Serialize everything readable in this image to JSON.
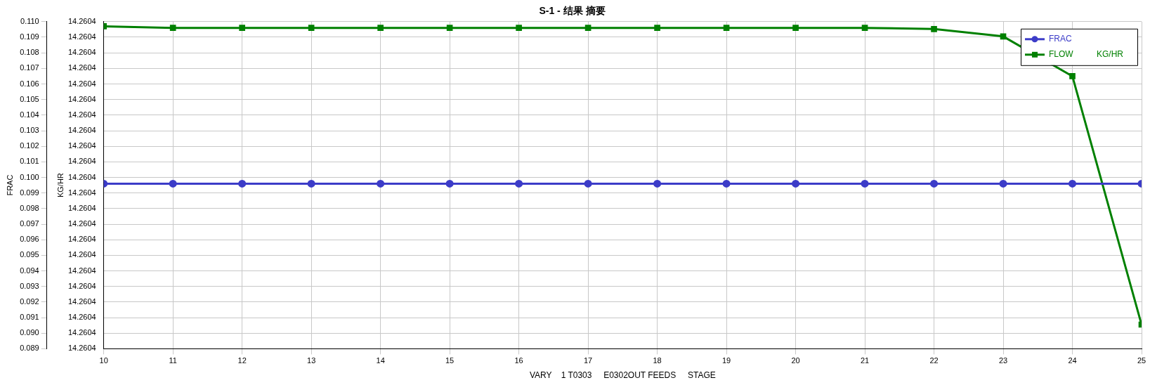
{
  "chart_data": {
    "type": "line",
    "title": "S-1 - 结果 摘要",
    "xlabel": "VARY    1 T0303     E0302OUT FEEDS     STAGE",
    "ylabel": "FRAC",
    "y2label": "KG/HR",
    "x": [
      10,
      11,
      12,
      13,
      14,
      15,
      16,
      17,
      18,
      19,
      20,
      21,
      22,
      23,
      24,
      25
    ],
    "xlim": [
      10,
      25
    ],
    "xticks": [
      10,
      11,
      12,
      13,
      14,
      15,
      16,
      17,
      18,
      19,
      20,
      21,
      22,
      23,
      24,
      25
    ],
    "ylim": [
      0.089,
      0.11
    ],
    "yticks": [
      {
        "value": 0.089,
        "label": "0.089"
      },
      {
        "value": 0.09,
        "label": "0.090"
      },
      {
        "value": 0.091,
        "label": "0.091"
      },
      {
        "value": 0.092,
        "label": "0.092"
      },
      {
        "value": 0.093,
        "label": "0.093"
      },
      {
        "value": 0.094,
        "label": "0.094"
      },
      {
        "value": 0.095,
        "label": "0.095"
      },
      {
        "value": 0.096,
        "label": "0.096"
      },
      {
        "value": 0.097,
        "label": "0.097"
      },
      {
        "value": 0.098,
        "label": "0.098"
      },
      {
        "value": 0.099,
        "label": "0.099"
      },
      {
        "value": 0.1,
        "label": "0.100"
      },
      {
        "value": 0.101,
        "label": "0.101"
      },
      {
        "value": 0.102,
        "label": "0.102"
      },
      {
        "value": 0.103,
        "label": "0.103"
      },
      {
        "value": 0.104,
        "label": "0.104"
      },
      {
        "value": 0.105,
        "label": "0.105"
      },
      {
        "value": 0.106,
        "label": "0.106"
      },
      {
        "value": 0.107,
        "label": "0.107"
      },
      {
        "value": 0.108,
        "label": "0.108"
      },
      {
        "value": 0.109,
        "label": "0.109"
      },
      {
        "value": 0.11,
        "label": "0.110"
      }
    ],
    "y2lim": [
      14.26036,
      14.260444
    ],
    "y2ticks": [
      {
        "value": 14.26036,
        "label": "14.2604"
      },
      {
        "value": 14.260364,
        "label": "14.2604"
      },
      {
        "value": 14.260368,
        "label": "14.2604"
      },
      {
        "value": 14.260372,
        "label": "14.2604"
      },
      {
        "value": 14.260376,
        "label": "14.2604"
      },
      {
        "value": 14.26038,
        "label": "14.2604"
      },
      {
        "value": 14.260384,
        "label": "14.2604"
      },
      {
        "value": 14.260388,
        "label": "14.2604"
      },
      {
        "value": 14.260392,
        "label": "14.2604"
      },
      {
        "value": 14.260396,
        "label": "14.2604"
      },
      {
        "value": 14.2604,
        "label": "14.2604"
      },
      {
        "value": 14.260404,
        "label": "14.2604"
      },
      {
        "value": 14.260408,
        "label": "14.2604"
      },
      {
        "value": 14.260412,
        "label": "14.2604"
      },
      {
        "value": 14.260416,
        "label": "14.2604"
      },
      {
        "value": 14.26042,
        "label": "14.2604"
      },
      {
        "value": 14.260424,
        "label": "14.2604"
      },
      {
        "value": 14.260428,
        "label": "14.2604"
      },
      {
        "value": 14.260432,
        "label": "14.2604"
      },
      {
        "value": 14.260436,
        "label": "14.2604"
      },
      {
        "value": 14.26044,
        "label": "14.2604"
      },
      {
        "value": 14.260444,
        "label": "14.2604"
      }
    ],
    "grid": true,
    "legend": "top right",
    "line_style": "solid",
    "series": [
      {
        "name": "FRAC",
        "color": "#3c3cc8",
        "marker": "circle",
        "values": [
          0.0996,
          0.0996,
          0.0996,
          0.0996,
          0.0996,
          0.0996,
          0.0996,
          0.0996,
          0.0996,
          0.0996,
          0.0996,
          0.0996,
          0.0996,
          0.0996,
          0.0996,
          0.0996
        ]
      },
      {
        "name": "FLOW          KG/HR",
        "color": "#008000",
        "marker": "square",
        "axis": "y2",
        "values": [
          14.2604428,
          14.2604424,
          14.2604424,
          14.2604424,
          14.2604424,
          14.2604424,
          14.2604424,
          14.2604424,
          14.2604424,
          14.2604424,
          14.2604424,
          14.2604424,
          14.2604421,
          14.2604402,
          14.26043,
          14.2603662
        ]
      }
    ]
  }
}
